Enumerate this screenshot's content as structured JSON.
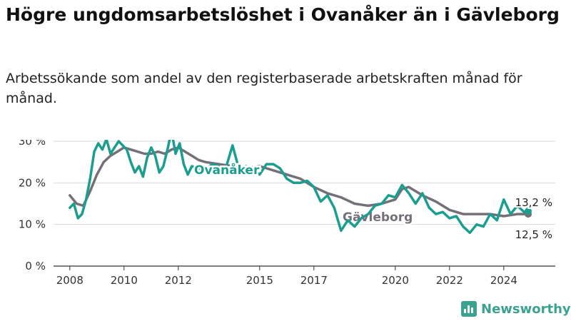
{
  "title": "Högre ungdomsarbetslöshet i Ovanåker än i Gävleborg",
  "subtitle": "Arbetssökande som andel av den registerbaserade arbetskraften månad för månad.",
  "brand": {
    "name": "Newsworthy",
    "icon": "bar-chart-logo-icon",
    "color": "#3aa28f"
  },
  "colors": {
    "ovanaker": "#1b9e8f",
    "gavleborg": "#757078",
    "grid": "#d9d9d9",
    "axis": "#333333"
  },
  "chart_data": {
    "type": "line",
    "title": "Högre ungdomsarbetslöshet i Ovanåker än i Gävleborg",
    "xlabel": "",
    "ylabel": "",
    "xlim": [
      2007.4,
      2025.9
    ],
    "ylim": [
      0,
      30
    ],
    "grid": true,
    "legend": "inline labels",
    "y_ticks": [
      0,
      10,
      20,
      30
    ],
    "y_tick_labels": [
      "0 %",
      "10 %",
      "20 %",
      "30 %"
    ],
    "x_ticks": [
      2008,
      2010,
      2012,
      2015,
      2017,
      2020,
      2022,
      2024
    ],
    "x_tick_labels": [
      "2008",
      "2010",
      "2012",
      "2015",
      "2017",
      "2020",
      "2022",
      "2024"
    ],
    "series": [
      {
        "name": "Gävleborg",
        "label": "Gävleborg",
        "end_label": "12,5 %",
        "end_value": 12.5,
        "color": "#757078",
        "x": [
          2008.0,
          2008.25,
          2008.5,
          2008.75,
          2009.0,
          2009.25,
          2009.5,
          2009.75,
          2010.0,
          2010.25,
          2010.5,
          2010.75,
          2011.0,
          2011.25,
          2011.5,
          2011.75,
          2012.0,
          2012.25,
          2012.5,
          2012.75,
          2013.0,
          2013.5,
          2014.0,
          2014.5,
          2015.0,
          2015.5,
          2016.0,
          2016.5,
          2017.0,
          2017.5,
          2018.0,
          2018.5,
          2019.0,
          2019.5,
          2020.0,
          2020.25,
          2020.5,
          2020.75,
          2021.0,
          2021.5,
          2022.0,
          2022.5,
          2023.0,
          2023.5,
          2024.0,
          2024.5,
          2024.9
        ],
        "values": [
          17.0,
          15.0,
          14.5,
          18.0,
          22.0,
          25.0,
          26.5,
          27.5,
          28.5,
          28.0,
          27.5,
          27.0,
          27.0,
          27.5,
          27.0,
          28.0,
          28.5,
          27.5,
          26.5,
          25.5,
          25.0,
          24.5,
          24.0,
          23.5,
          24.0,
          23.0,
          22.0,
          21.0,
          19.0,
          17.5,
          16.5,
          15.0,
          14.5,
          15.0,
          16.0,
          18.5,
          19.0,
          18.0,
          17.0,
          15.5,
          13.5,
          12.5,
          12.5,
          12.5,
          12.0,
          12.5,
          12.5
        ]
      },
      {
        "name": "Ovanåker",
        "label": "Ovanåker",
        "end_label": "13,2 %",
        "end_value": 13.2,
        "color": "#1b9e8f",
        "x": [
          2008.0,
          2008.15,
          2008.3,
          2008.45,
          2008.6,
          2008.75,
          2008.9,
          2009.05,
          2009.2,
          2009.35,
          2009.5,
          2009.65,
          2009.8,
          2009.95,
          2010.1,
          2010.25,
          2010.4,
          2010.55,
          2010.7,
          2010.85,
          2011.0,
          2011.15,
          2011.3,
          2011.45,
          2011.6,
          2011.75,
          2011.9,
          2012.05,
          2012.2,
          2012.35,
          2012.5,
          2012.75,
          2013.0,
          2013.25,
          2013.5,
          2013.75,
          2014.0,
          2014.25,
          2014.5,
          2014.75,
          2015.0,
          2015.25,
          2015.5,
          2015.75,
          2016.0,
          2016.25,
          2016.5,
          2016.75,
          2017.0,
          2017.25,
          2017.5,
          2017.75,
          2018.0,
          2018.25,
          2018.5,
          2018.75,
          2019.0,
          2019.25,
          2019.5,
          2019.75,
          2020.0,
          2020.25,
          2020.5,
          2020.75,
          2021.0,
          2021.25,
          2021.5,
          2021.75,
          2022.0,
          2022.25,
          2022.5,
          2022.75,
          2023.0,
          2023.25,
          2023.5,
          2023.75,
          2024.0,
          2024.25,
          2024.5,
          2024.75,
          2024.9
        ],
        "values": [
          14.0,
          15.0,
          11.5,
          12.5,
          16.0,
          21.0,
          27.5,
          29.5,
          28.0,
          30.5,
          27.0,
          28.5,
          30.0,
          29.0,
          28.0,
          25.0,
          22.5,
          24.0,
          21.5,
          26.0,
          28.5,
          26.5,
          22.5,
          24.0,
          28.0,
          32.5,
          27.0,
          29.5,
          24.5,
          22.0,
          24.0,
          23.5,
          23.0,
          24.5,
          24.0,
          23.5,
          29.0,
          23.0,
          24.0,
          23.0,
          22.0,
          24.5,
          24.5,
          23.5,
          21.0,
          20.0,
          20.0,
          20.5,
          19.0,
          15.5,
          17.0,
          14.0,
          8.5,
          11.0,
          9.5,
          11.5,
          12.5,
          14.5,
          15.0,
          17.0,
          16.5,
          19.5,
          17.5,
          15.0,
          17.5,
          14.0,
          12.5,
          13.0,
          11.5,
          12.0,
          9.5,
          8.0,
          10.0,
          9.5,
          12.5,
          11.0,
          16.0,
          12.5,
          14.5,
          13.0,
          13.2
        ]
      }
    ]
  }
}
